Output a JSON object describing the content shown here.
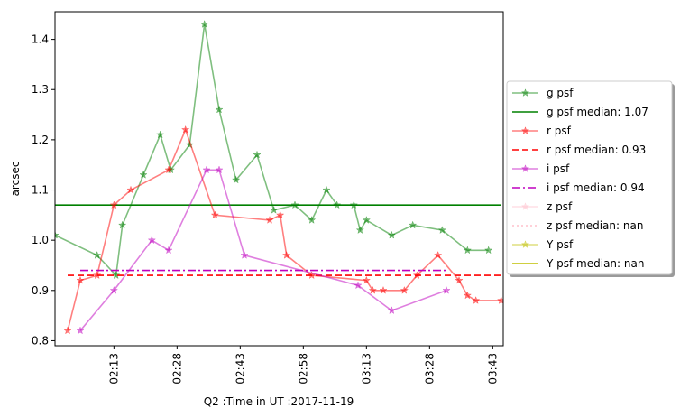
{
  "chart_data": {
    "type": "line",
    "title": "",
    "xlabel": "Q2 :Time in UT :2017-11-19",
    "ylabel": "arcsec",
    "x_ticks": [
      "02:13",
      "02:28",
      "02:43",
      "02:58",
      "03:13",
      "03:28",
      "03:43"
    ],
    "y_ticks": [
      "0.8",
      "0.9",
      "1.0",
      "1.1",
      "1.2",
      "1.3",
      "1.4"
    ],
    "xlim": [
      "01:59",
      "03:45.5"
    ],
    "ylim": [
      0.79,
      1.455
    ],
    "grid": false,
    "legend_position": "outside right",
    "series": [
      {
        "name": "g psf",
        "kind": "line-marker",
        "color": "#008000",
        "opacity": 0.5,
        "marker": "star",
        "x": [
          "01:59",
          "02:09",
          "02:13.5",
          "02:15",
          "02:20",
          "02:24",
          "02:26.5",
          "02:31",
          "02:34.5",
          "02:38",
          "02:42",
          "02:47",
          "02:51",
          "02:56",
          "03:00",
          "03:03.5",
          "03:06",
          "03:10",
          "03:11.5",
          "03:13",
          "03:19",
          "03:24",
          "03:31",
          "03:37",
          "03:42"
        ],
        "y": [
          1.01,
          0.97,
          0.93,
          1.03,
          1.13,
          1.21,
          1.14,
          1.19,
          1.43,
          1.26,
          1.12,
          1.17,
          1.06,
          1.07,
          1.04,
          1.1,
          1.07,
          1.07,
          1.02,
          1.04,
          1.01,
          1.03,
          1.02,
          0.98,
          0.98
        ]
      },
      {
        "name": "g psf median: 1.07",
        "kind": "hline",
        "color": "#008000",
        "dash": "solid",
        "value": 1.07,
        "x_range": [
          "01:59",
          "03:45"
        ]
      },
      {
        "name": "r psf",
        "kind": "line-marker",
        "color": "#ff0000",
        "opacity": 0.5,
        "marker": "star",
        "x": [
          "02:02",
          "02:05",
          "02:09",
          "02:13",
          "02:17",
          "02:26",
          "02:30",
          "02:37",
          "02:50",
          "02:52.5",
          "02:54",
          "03:00",
          "03:13",
          "03:14.5",
          "03:17",
          "03:22",
          "03:25",
          "03:30",
          "03:35",
          "03:37",
          "03:39",
          "03:45"
        ],
        "y": [
          0.82,
          0.92,
          0.93,
          1.07,
          1.1,
          1.14,
          1.22,
          1.05,
          1.04,
          1.05,
          0.97,
          0.93,
          0.92,
          0.9,
          0.9,
          0.9,
          0.93,
          0.97,
          0.92,
          0.89,
          0.88,
          0.88
        ],
        "note_dummy": ""
      },
      {
        "name": "r psf median: 0.93",
        "kind": "hline",
        "color": "#ff0000",
        "dash": "dashed",
        "value": 0.93,
        "x_range": [
          "02:02",
          "03:45"
        ]
      },
      {
        "name": "i psf",
        "kind": "line-marker",
        "color": "#bf00bf",
        "opacity": 0.5,
        "marker": "star",
        "x": [
          "02:05",
          "02:13",
          "02:22",
          "02:26",
          "02:35",
          "02:38",
          "02:44",
          "03:11",
          "03:19",
          "03:32"
        ],
        "y": [
          0.82,
          0.9,
          1.0,
          0.98,
          1.14,
          1.14,
          0.97,
          0.91,
          0.86,
          0.9
        ]
      },
      {
        "name": "i psf median: 0.94",
        "kind": "hline",
        "color": "#bf00bf",
        "dash": "dashdot",
        "value": 0.94,
        "x_range": [
          "02:05",
          "03:32"
        ]
      },
      {
        "name": "z psf",
        "kind": "line-marker",
        "color": "#ffc0cb",
        "opacity": 0.5,
        "marker": "star",
        "x": [],
        "y": []
      },
      {
        "name": "z psf median: nan",
        "kind": "hline",
        "color": "#ffc0cb",
        "dash": "dotted",
        "value": null
      },
      {
        "name": "Y psf",
        "kind": "line-marker",
        "color": "#bfbf00",
        "opacity": 0.5,
        "marker": "star",
        "x": [],
        "y": []
      },
      {
        "name": "Y psf median: nan",
        "kind": "hline",
        "color": "#bfbf00",
        "dash": "solid",
        "value": null
      }
    ]
  }
}
